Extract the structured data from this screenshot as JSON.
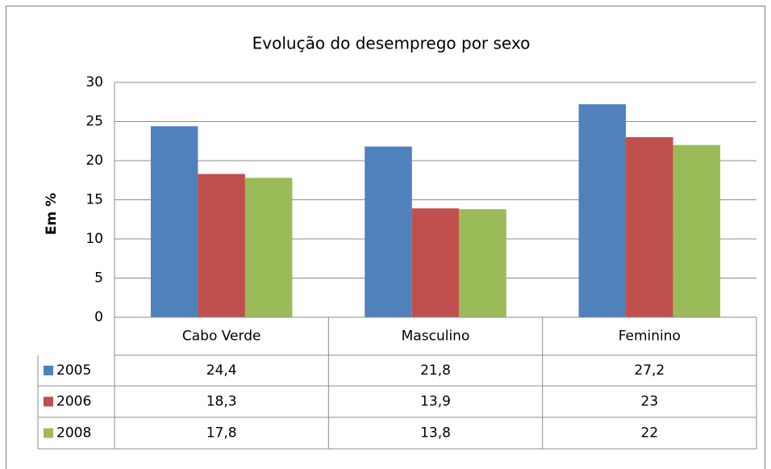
{
  "chart_data": {
    "type": "bar",
    "title": "Evolução do desemprego por sexo",
    "y_label": "Em %",
    "categories": [
      "Cabo Verde",
      "Masculino",
      "Feminino"
    ],
    "series": [
      {
        "name": "2005",
        "color": "#4f81bd",
        "values": [
          24.4,
          21.8,
          27.2
        ],
        "value_labels": [
          "24,4",
          "21,8",
          "27,2"
        ]
      },
      {
        "name": "2006",
        "color": "#c0504d",
        "values": [
          18.3,
          13.9,
          23
        ],
        "value_labels": [
          "18,3",
          "13,9",
          "23"
        ]
      },
      {
        "name": "2008",
        "color": "#9bbb59",
        "values": [
          17.8,
          13.8,
          22
        ],
        "value_labels": [
          "17,8",
          "13,8",
          "22"
        ]
      }
    ],
    "ylim": [
      0,
      30
    ],
    "yticks": [
      0,
      5,
      10,
      15,
      20,
      25,
      30
    ],
    "grid": true,
    "data_table": true
  }
}
